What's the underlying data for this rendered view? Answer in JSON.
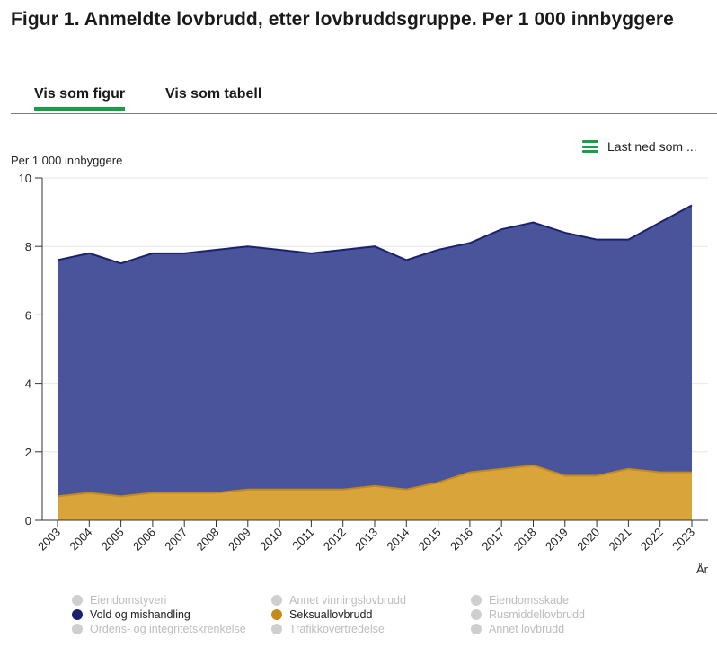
{
  "title": "Figur 1. Anmeldte lovbrudd, etter lovbruddsgruppe. Per 1 000 innbyggere",
  "tabs": [
    {
      "label": "Vis som figur",
      "active": true
    },
    {
      "label": "Vis som tabell",
      "active": false
    }
  ],
  "download": {
    "label": "Last ned som ..."
  },
  "colors": {
    "vold_fill": "#4a549b",
    "vold_line": "#1a2270",
    "seksual_fill": "#d9a43a",
    "seksual_line": "#c48a1a",
    "grid": "#e6e6e6",
    "axis": "#333333"
  },
  "chart_data": {
    "type": "area",
    "title": "Figur 1. Anmeldte lovbrudd, etter lovbruddsgruppe. Per 1 000 innbyggere",
    "ylabel": "Per 1 000 innbyggere",
    "xlabel": "År",
    "ylim": [
      0,
      10
    ],
    "yticks": [
      0,
      2,
      4,
      6,
      8,
      10
    ],
    "x": [
      "2003",
      "2004",
      "2005",
      "2006",
      "2007",
      "2008",
      "2009",
      "2010",
      "2011",
      "2012",
      "2013",
      "2014",
      "2015",
      "2016",
      "2017",
      "2018",
      "2019",
      "2020",
      "2021",
      "2022",
      "2023"
    ],
    "series": [
      {
        "name": "Vold og mishandling",
        "visible": true,
        "values": [
          7.6,
          7.8,
          7.5,
          7.8,
          7.8,
          7.9,
          8.0,
          7.9,
          7.8,
          7.9,
          8.0,
          7.6,
          7.9,
          8.1,
          8.5,
          8.7,
          8.4,
          8.2,
          8.2,
          8.7,
          9.2
        ]
      },
      {
        "name": "Seksuallovbrudd",
        "visible": true,
        "values": [
          0.7,
          0.8,
          0.7,
          0.8,
          0.8,
          0.8,
          0.9,
          0.9,
          0.9,
          0.9,
          1.0,
          0.9,
          1.1,
          1.4,
          1.5,
          1.6,
          1.3,
          1.3,
          1.5,
          1.4,
          1.4
        ]
      }
    ],
    "legend": [
      {
        "name": "Eiendomstyveri",
        "visible": false
      },
      {
        "name": "Annet vinningslovbrudd",
        "visible": false
      },
      {
        "name": "Eiendomsskade",
        "visible": false
      },
      {
        "name": "Vold og mishandling",
        "visible": true
      },
      {
        "name": "Seksuallovbrudd",
        "visible": true
      },
      {
        "name": "Rusmiddellovbrudd",
        "visible": false
      },
      {
        "name": "Ordens- og integritetskrenkelse",
        "visible": false
      },
      {
        "name": "Trafikkovertredelse",
        "visible": false
      },
      {
        "name": "Annet lovbrudd",
        "visible": false
      }
    ]
  }
}
